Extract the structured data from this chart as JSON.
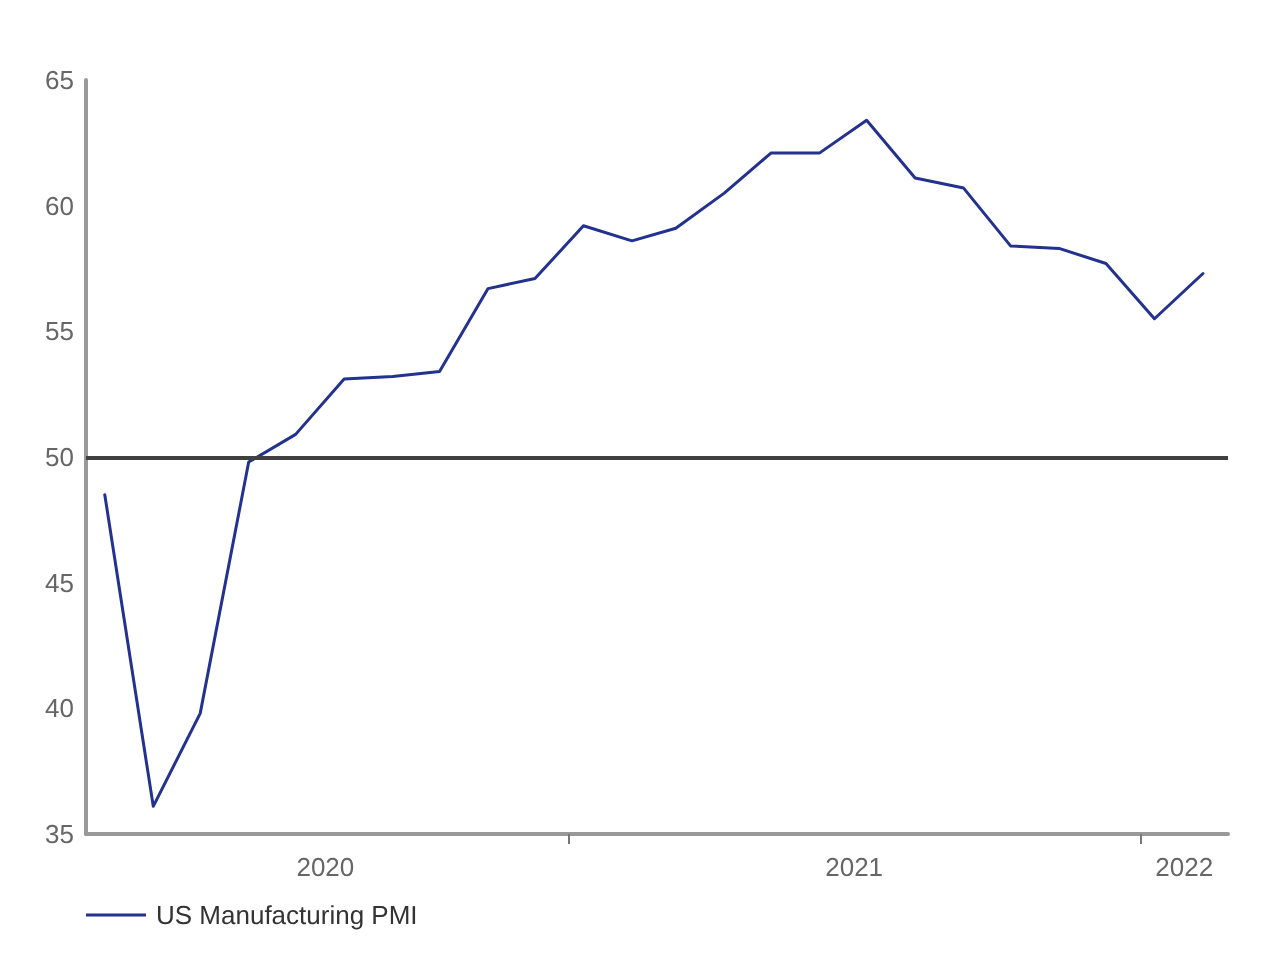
{
  "chart_data": {
    "type": "line",
    "x": [
      "2020-03-10",
      "2020-04-10",
      "2020-05-10",
      "2020-06-10",
      "2020-07-10",
      "2020-08-10",
      "2020-09-10",
      "2020-10-10",
      "2020-11-10",
      "2020-12-10",
      "2021-01-10",
      "2021-02-10",
      "2021-03-10",
      "2021-04-10",
      "2021-05-10",
      "2021-06-10",
      "2021-07-10",
      "2021-08-10",
      "2021-09-10",
      "2021-10-10",
      "2021-11-10",
      "2021-12-10",
      "2022-01-10",
      "2022-02-10"
    ],
    "series": [
      {
        "name": "US Manufacturing PMI",
        "color": "#23318f",
        "values": [
          48.5,
          36.1,
          39.8,
          49.8,
          50.9,
          53.1,
          53.2,
          53.4,
          56.7,
          57.1,
          59.2,
          58.6,
          59.1,
          60.5,
          62.1,
          62.1,
          63.4,
          61.1,
          60.7,
          58.4,
          58.3,
          57.7,
          55.5,
          57.3
        ]
      }
    ],
    "xlim": [
      "2020-02-27",
      "2022-02-26"
    ],
    "xticks": [
      {
        "value": "2020-07-29",
        "label": "2020"
      },
      {
        "value": "2021-01-01",
        "label": null
      },
      {
        "value": "2021-07-02",
        "label": "2021"
      },
      {
        "value": "2022-01-01",
        "label": null
      },
      {
        "value": "2022-01-29",
        "label": "2022"
      }
    ],
    "ylim": [
      35,
      65
    ],
    "yticks": [
      35,
      40,
      45,
      50,
      55,
      60,
      65
    ],
    "ref_lines": [
      {
        "axis": "y",
        "value": 50,
        "color": "#404040"
      }
    ],
    "grid": false,
    "legend": "bottom left",
    "marker": "none",
    "line_style": "solid"
  }
}
